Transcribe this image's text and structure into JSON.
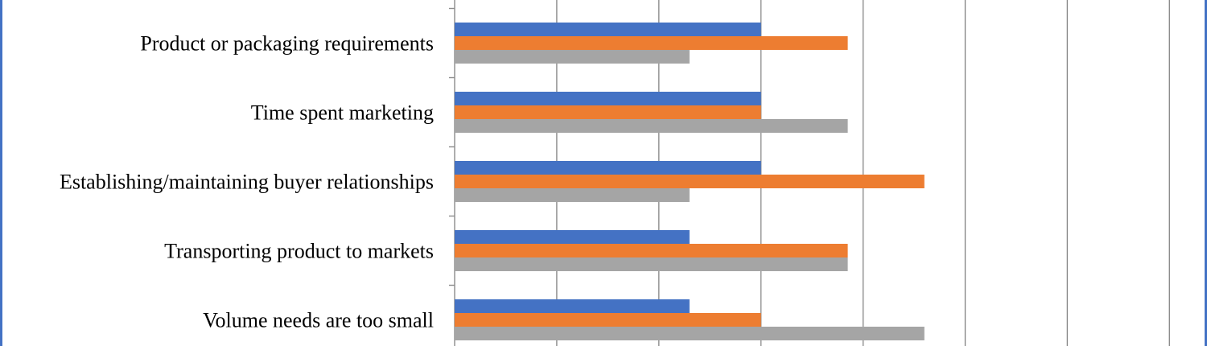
{
  "chart_data": {
    "type": "bar",
    "orientation": "horizontal",
    "categories": [
      "Product or packaging requirements",
      "Time spent marketing",
      "Establishing/maintaining buyer relationships",
      "Transporting product to markets",
      "Volume needs are too small"
    ],
    "series": [
      {
        "color": "#4472c4",
        "values": [
          3,
          3,
          3,
          2.3,
          2.3
        ]
      },
      {
        "color": "#ed7d31",
        "values": [
          3.85,
          3,
          4.6,
          3.85,
          3
        ]
      },
      {
        "color": "#a5a5a5",
        "values": [
          2.3,
          3.85,
          2.3,
          3.85,
          4.6
        ]
      }
    ],
    "xlim": [
      0,
      7
    ],
    "x_gridline_step": 1,
    "grid": true,
    "title": "",
    "xlabel": "",
    "ylabel": ""
  }
}
